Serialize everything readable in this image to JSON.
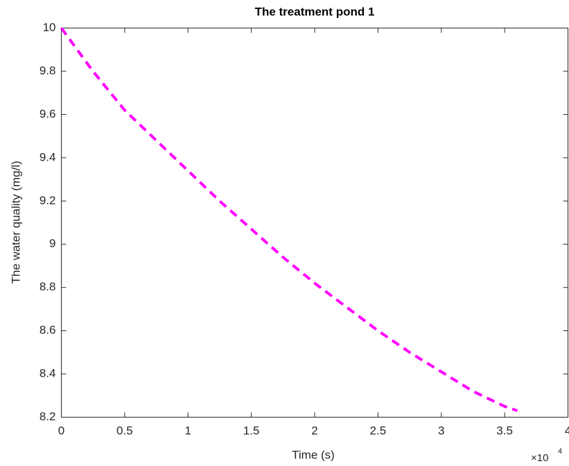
{
  "chart_data": {
    "type": "line",
    "title": "The treatment pond 1",
    "x_label": "Time (s)",
    "y_label": "The water quality (mg/l)",
    "x_multiplier": {
      "base": "×10",
      "exponent": "4"
    },
    "x": [
      0,
      2500,
      5000,
      7500,
      10000,
      12500,
      15000,
      17500,
      20000,
      22500,
      25000,
      27500,
      30000,
      32500,
      35000,
      36000
    ],
    "series": [
      {
        "color": "#ff00ff",
        "values": [
          10,
          9.8,
          9.62,
          9.48,
          9.34,
          9.2,
          9.07,
          8.94,
          8.82,
          8.71,
          8.6,
          8.5,
          8.41,
          8.32,
          8.25,
          8.23
        ]
      }
    ],
    "xlim": [
      0,
      40000
    ],
    "xticks": [
      0,
      {
        "value": 5000,
        "label": "0.5"
      },
      {
        "value": 10000,
        "label": "1"
      },
      {
        "value": 15000,
        "label": "1.5"
      },
      {
        "value": 20000,
        "label": "2"
      },
      {
        "value": 25000,
        "label": "2.5"
      },
      {
        "value": 30000,
        "label": "3"
      },
      {
        "value": 35000,
        "label": "3.5"
      },
      {
        "value": 40000,
        "label": "4"
      }
    ],
    "ylim": [
      8.2,
      10
    ],
    "yticks": [
      8.2,
      8.4,
      8.6,
      8.8,
      9,
      9.2,
      9.4,
      9.6,
      9.8,
      10
    ],
    "grid": false
  }
}
